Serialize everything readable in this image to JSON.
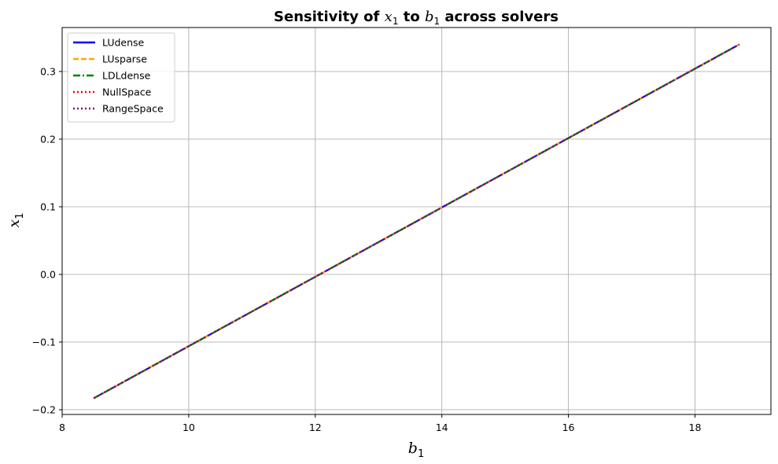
{
  "chart_data": {
    "type": "line",
    "title": {
      "prefix": "Sensitivity of ",
      "var1": "x",
      "var1_sub": "1",
      "middle": " to ",
      "var2": "b",
      "var2_sub": "1",
      "suffix": " across solvers"
    },
    "xlabel": {
      "var": "b",
      "sub": "1"
    },
    "ylabel": {
      "var": "x",
      "sub": "1"
    },
    "xlim": [
      8.0,
      19.2
    ],
    "ylim": [
      -0.207,
      0.365
    ],
    "x_ticks": [
      8,
      10,
      12,
      14,
      16,
      18
    ],
    "x_tick_labels": [
      "8",
      "10",
      "12",
      "14",
      "16",
      "18"
    ],
    "y_ticks": [
      -0.2,
      -0.1,
      0.0,
      0.1,
      0.2,
      0.3
    ],
    "y_tick_labels": [
      "−0.2",
      "−0.1",
      "0.0",
      "0.1",
      "0.2",
      "0.3"
    ],
    "grid": true,
    "legend_position": "top-left",
    "series": [
      {
        "name": "LUdense",
        "color": "#0000ff",
        "dash": "solid",
        "x": [
          8.5,
          18.7
        ],
        "y": [
          -0.183,
          0.34
        ]
      },
      {
        "name": "LUsparse",
        "color": "#ffa500",
        "dash": "dashed",
        "x": [
          8.5,
          18.7
        ],
        "y": [
          -0.183,
          0.34
        ]
      },
      {
        "name": "LDLdense",
        "color": "#008000",
        "dash": "dashdot",
        "x": [
          8.5,
          18.7
        ],
        "y": [
          -0.183,
          0.34
        ]
      },
      {
        "name": "NullSpace",
        "color": "#ff0000",
        "dash": "dotted",
        "x": [
          8.5,
          18.7
        ],
        "y": [
          -0.183,
          0.34
        ]
      },
      {
        "name": "RangeSpace",
        "color": "#800080",
        "dash": "dotted",
        "x": [
          8.5,
          18.7
        ],
        "y": [
          -0.183,
          0.34
        ]
      }
    ]
  }
}
